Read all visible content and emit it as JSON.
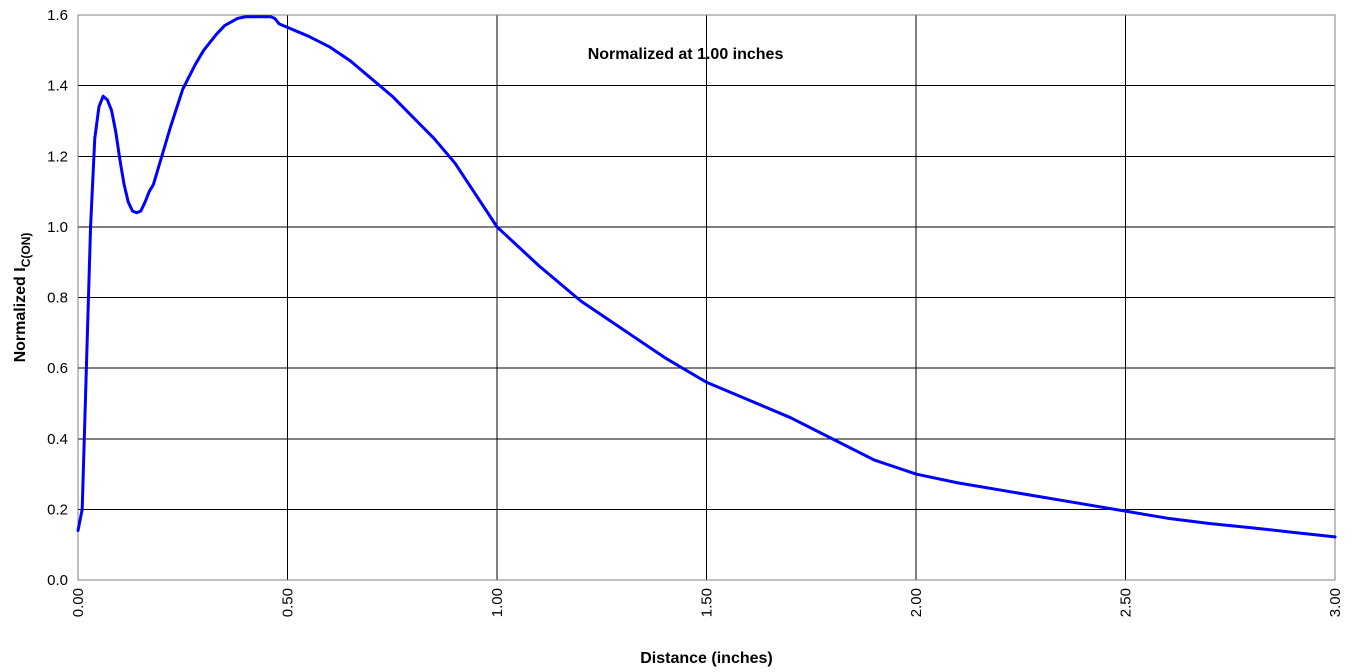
{
  "chart_data": {
    "type": "line",
    "title": "",
    "xlabel": "Distance (inches)",
    "ylabel_main": "Normalized I",
    "ylabel_sub": "C(ON)",
    "xlim": [
      0,
      3
    ],
    "ylim": [
      0,
      1.6
    ],
    "x_ticks": [
      "0.00",
      "0.50",
      "1.00",
      "1.50",
      "2.00",
      "2.50",
      "3.00"
    ],
    "x_tick_values": [
      0,
      0.5,
      1.0,
      1.5,
      2.0,
      2.5,
      3.0
    ],
    "y_ticks": [
      "0.0",
      "0.2",
      "0.4",
      "0.6",
      "0.8",
      "1.0",
      "1.2",
      "1.4",
      "1.6"
    ],
    "y_tick_values": [
      0,
      0.2,
      0.4,
      0.6,
      0.8,
      1.0,
      1.2,
      1.4,
      1.6
    ],
    "grid": true,
    "annotations": [
      {
        "text": "Normalized at 1.00 inches"
      }
    ],
    "series": [
      {
        "color": "#0000FF",
        "x": [
          0,
          0.01,
          0.02,
          0.03,
          0.04,
          0.05,
          0.06,
          0.07,
          0.08,
          0.09,
          0.1,
          0.11,
          0.12,
          0.13,
          0.14,
          0.15,
          0.16,
          0.17,
          0.18,
          0.19,
          0.2,
          0.22,
          0.25,
          0.28,
          0.3,
          0.33,
          0.35,
          0.38,
          0.4,
          0.42,
          0.44,
          0.46,
          0.47,
          0.48,
          0.5,
          0.55,
          0.6,
          0.65,
          0.7,
          0.75,
          0.8,
          0.85,
          0.9,
          0.95,
          1.0,
          1.1,
          1.2,
          1.3,
          1.4,
          1.5,
          1.6,
          1.7,
          1.8,
          1.9,
          2.0,
          2.1,
          2.2,
          2.3,
          2.4,
          2.5,
          2.6,
          2.7,
          2.8,
          2.9,
          3.0
        ],
        "y": [
          0.14,
          0.2,
          0.6,
          1.0,
          1.25,
          1.34,
          1.37,
          1.36,
          1.33,
          1.27,
          1.19,
          1.12,
          1.07,
          1.045,
          1.04,
          1.045,
          1.07,
          1.1,
          1.12,
          1.16,
          1.2,
          1.28,
          1.39,
          1.46,
          1.5,
          1.545,
          1.57,
          1.59,
          1.595,
          1.595,
          1.595,
          1.595,
          1.59,
          1.575,
          1.565,
          1.54,
          1.51,
          1.47,
          1.42,
          1.37,
          1.31,
          1.25,
          1.18,
          1.09,
          1.0,
          0.89,
          0.79,
          0.71,
          0.63,
          0.56,
          0.51,
          0.46,
          0.4,
          0.34,
          0.3,
          0.275,
          0.255,
          0.235,
          0.215,
          0.195,
          0.175,
          0.16,
          0.148,
          0.135,
          0.122
        ]
      }
    ]
  }
}
